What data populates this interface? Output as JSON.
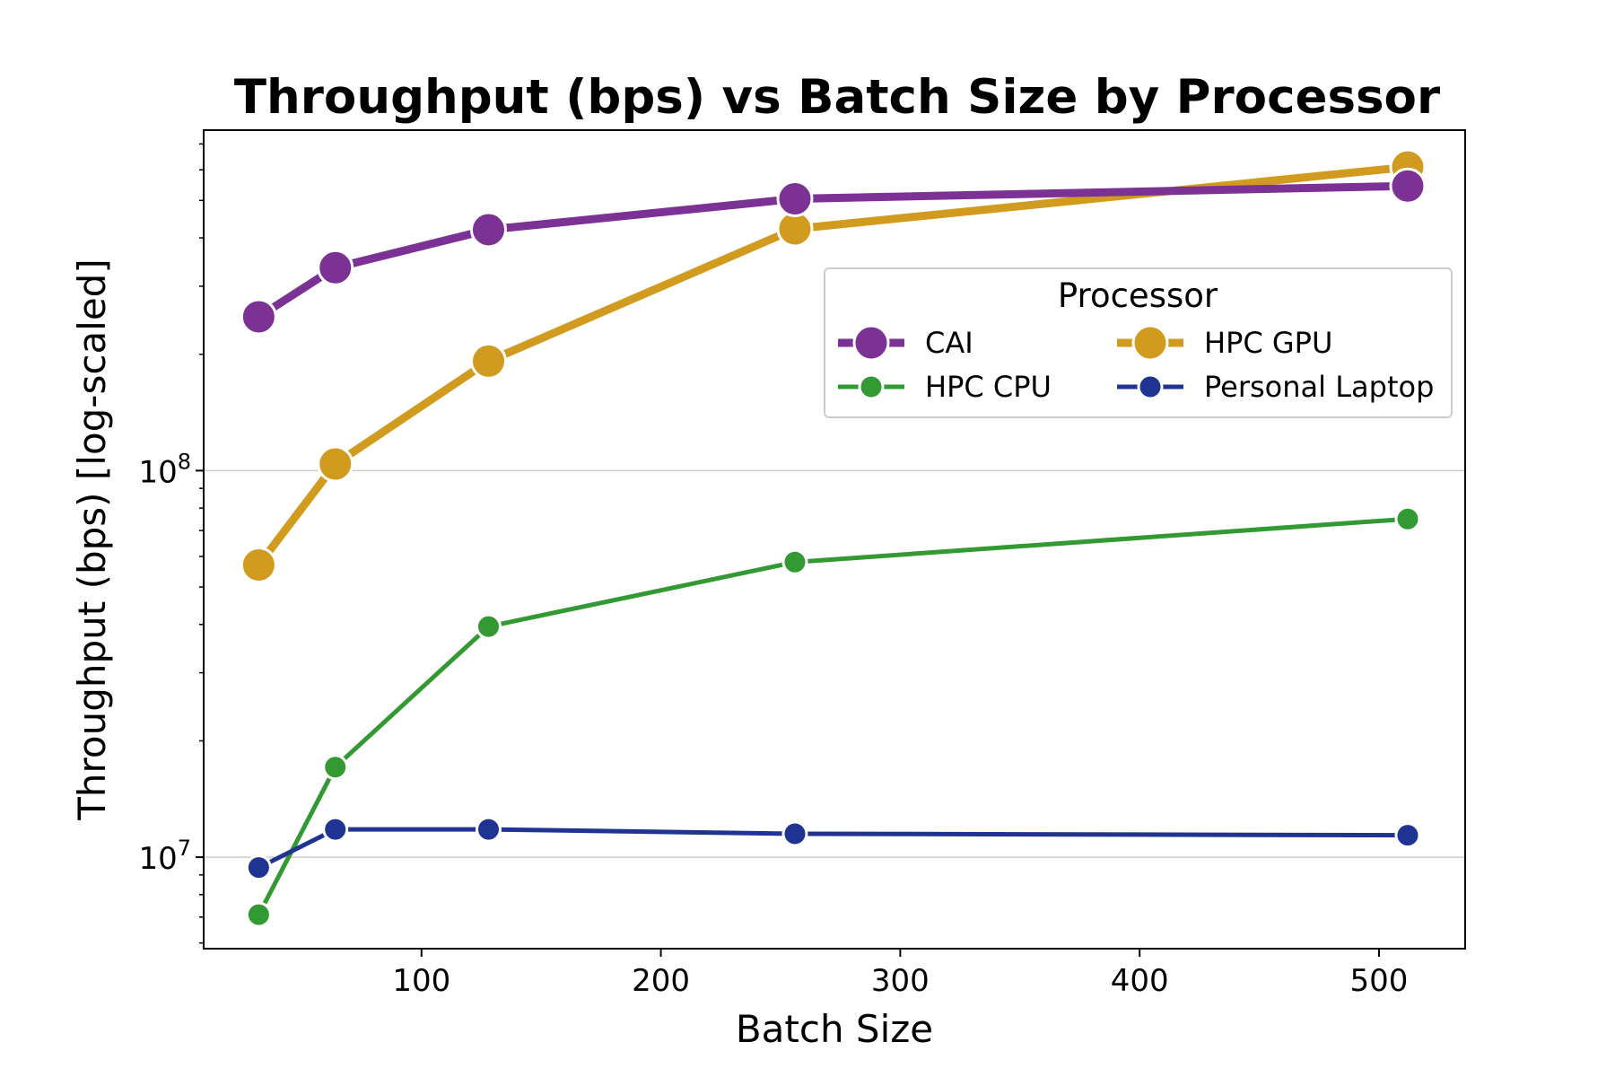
{
  "chart_data": {
    "type": "line",
    "title": "Throughput (bps) vs Batch Size by Processor",
    "xlabel": "Batch Size",
    "ylabel": "Throughput (bps) [log-scaled]",
    "yscale": "log",
    "xlim": [
      9,
      536
    ],
    "ylim": [
      5800000,
      760000000
    ],
    "x_ticks": [
      100,
      200,
      300,
      400,
      500
    ],
    "y_major_ticks": [
      {
        "value": 10000000,
        "base": "10",
        "exp": "7"
      },
      {
        "value": 100000000,
        "base": "10",
        "exp": "8"
      }
    ],
    "y_minor_ticks": [
      6000000,
      7000000,
      8000000,
      9000000,
      20000000,
      30000000,
      40000000,
      50000000,
      60000000,
      70000000,
      80000000,
      90000000,
      200000000,
      300000000,
      400000000,
      500000000,
      600000000,
      700000000
    ],
    "grid": "major-y",
    "legend": {
      "title": "Processor",
      "placement": "upper-right",
      "ncol": 2,
      "order": [
        "CAI",
        "HPC GPU",
        "HPC CPU",
        "Personal Laptop"
      ]
    },
    "x": [
      32,
      64,
      128,
      256,
      512
    ],
    "series": [
      {
        "name": "CAI",
        "color": "#7b3294",
        "style": "thick",
        "values": [
          250000000,
          335000000,
          420000000,
          505000000,
          545000000
        ]
      },
      {
        "name": "HPC GPU",
        "color": "#d19b1f",
        "style": "thick",
        "values": [
          57000000,
          104000000,
          192000000,
          422000000,
          610000000
        ]
      },
      {
        "name": "HPC CPU",
        "color": "#339933",
        "style": "thin",
        "values": [
          7100000,
          17100000,
          39500000,
          58000000,
          75000000
        ]
      },
      {
        "name": "Personal Laptop",
        "color": "#1f3393",
        "style": "thin",
        "values": [
          9400000,
          11800000,
          11800000,
          11500000,
          11400000
        ]
      }
    ]
  }
}
